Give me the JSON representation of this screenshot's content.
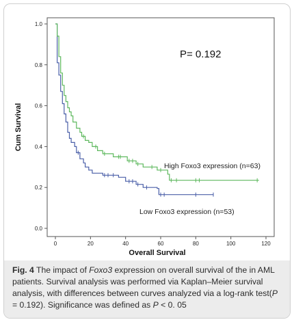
{
  "chart_data": {
    "type": "line",
    "subtype": "kaplan-meier",
    "title": "",
    "xlabel": "Overall Survival",
    "ylabel": "Cum Survival",
    "xlim": [
      0,
      120
    ],
    "ylim": [
      0,
      1.0
    ],
    "x_ticks": [
      0,
      20,
      40,
      60,
      80,
      100,
      120
    ],
    "y_ticks": [
      0.0,
      0.2,
      0.4,
      0.6,
      0.8,
      1.0
    ],
    "y_tick_labels": [
      "0.0",
      "0.2",
      "0.4",
      "0.6",
      "0.8",
      "1.0"
    ],
    "grid": false,
    "annotation": "P= 0.192",
    "series": [
      {
        "name": "High Foxo3 expression (n=63)",
        "color": "#5db85d",
        "steps": [
          [
            0,
            1.0
          ],
          [
            1,
            0.94
          ],
          [
            2,
            0.84
          ],
          [
            3,
            0.76
          ],
          [
            4,
            0.7
          ],
          [
            5,
            0.65
          ],
          [
            6,
            0.62
          ],
          [
            7,
            0.59
          ],
          [
            8,
            0.57
          ],
          [
            9,
            0.55
          ],
          [
            10,
            0.52
          ],
          [
            12,
            0.49
          ],
          [
            14,
            0.47
          ],
          [
            15,
            0.45
          ],
          [
            17,
            0.43
          ],
          [
            19,
            0.42
          ],
          [
            21,
            0.4
          ],
          [
            24,
            0.38
          ],
          [
            27,
            0.365
          ],
          [
            33,
            0.35
          ],
          [
            41,
            0.33
          ],
          [
            46,
            0.315
          ],
          [
            50,
            0.3
          ],
          [
            58,
            0.285
          ],
          [
            64,
            0.265
          ],
          [
            65,
            0.235
          ],
          [
            116,
            0.235
          ]
        ],
        "censored": [
          [
            16,
            0.45
          ],
          [
            23,
            0.4
          ],
          [
            28,
            0.365
          ],
          [
            36,
            0.35
          ],
          [
            37,
            0.35
          ],
          [
            42,
            0.33
          ],
          [
            44,
            0.33
          ],
          [
            47,
            0.315
          ],
          [
            55,
            0.3
          ],
          [
            60,
            0.285
          ],
          [
            66,
            0.235
          ],
          [
            69,
            0.235
          ],
          [
            80,
            0.235
          ],
          [
            82,
            0.235
          ],
          [
            115,
            0.235
          ]
        ]
      },
      {
        "name": "Low Foxo3 expression (n=53)",
        "color": "#4a5fa8",
        "steps": [
          [
            0,
            1.0
          ],
          [
            1,
            0.81
          ],
          [
            2,
            0.75
          ],
          [
            3,
            0.67
          ],
          [
            4,
            0.61
          ],
          [
            5,
            0.56
          ],
          [
            6,
            0.52
          ],
          [
            7,
            0.47
          ],
          [
            8,
            0.44
          ],
          [
            9,
            0.42
          ],
          [
            11,
            0.4
          ],
          [
            12,
            0.37
          ],
          [
            14,
            0.34
          ],
          [
            16,
            0.32
          ],
          [
            17,
            0.3
          ],
          [
            19,
            0.285
          ],
          [
            21,
            0.27
          ],
          [
            27,
            0.26
          ],
          [
            36,
            0.25
          ],
          [
            40,
            0.23
          ],
          [
            46,
            0.215
          ],
          [
            50,
            0.2
          ],
          [
            58,
            0.195
          ],
          [
            59,
            0.165
          ],
          [
            90,
            0.165
          ]
        ],
        "censored": [
          [
            13,
            0.37
          ],
          [
            28,
            0.26
          ],
          [
            30,
            0.26
          ],
          [
            33,
            0.26
          ],
          [
            42,
            0.23
          ],
          [
            44,
            0.23
          ],
          [
            47,
            0.215
          ],
          [
            52,
            0.2
          ],
          [
            60,
            0.165
          ],
          [
            62,
            0.165
          ],
          [
            80,
            0.165
          ],
          [
            90,
            0.165
          ]
        ]
      }
    ]
  },
  "caption": {
    "fig_label": "Fig. 4",
    "part1": " The impact of ",
    "gene": "Foxo3",
    "part2": " expression on overall survival of the in AML patients. Survival analysis was performed via Kaplan–Meier survival analysis, with differences between curves analyzed via a log-rank test(",
    "p_symbol": "P",
    "part3": " = 0.192). Significance was defined as ",
    "p_symbol2": "P",
    "part4": " < 0. 05"
  }
}
